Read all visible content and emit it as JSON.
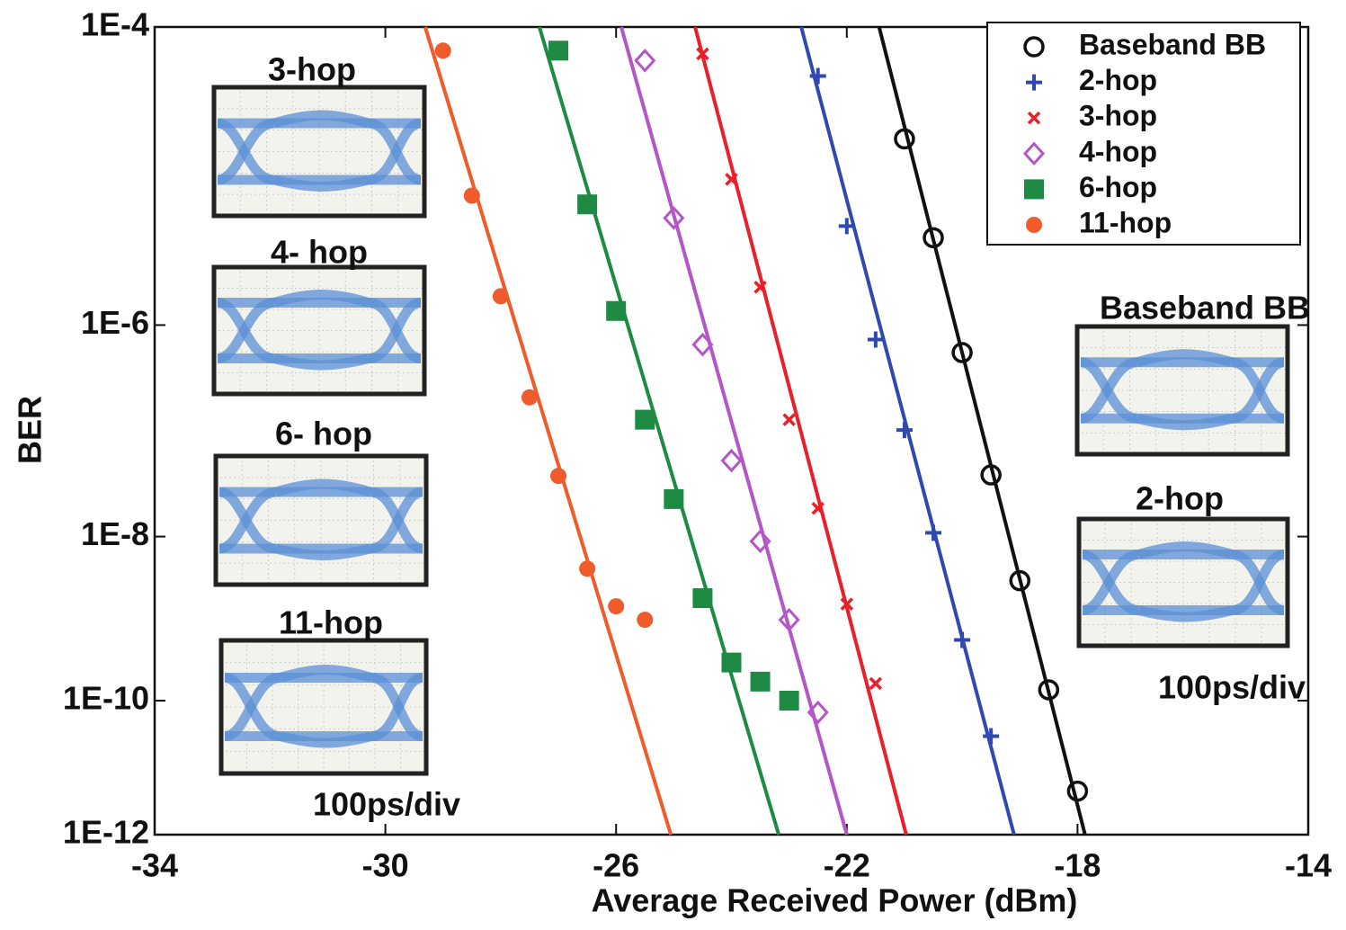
{
  "chart_data": {
    "type": "scatter",
    "xlabel": "Average Received Power (dBm)",
    "ylabel": "BER",
    "xlim": [
      -34,
      -14
    ],
    "xticks": [
      -34,
      -30,
      -26,
      -22,
      -18,
      -14
    ],
    "ylim": [
      1e-12,
      0.0001
    ],
    "yscale": "log-log",
    "yticks": [
      {
        "value": 1e-12,
        "label": "1E-12"
      },
      {
        "value": 1e-10,
        "label": "1E-10"
      },
      {
        "value": 1e-08,
        "label": "1E-8"
      },
      {
        "value": 1e-06,
        "label": "1E-6"
      },
      {
        "value": 0.0001,
        "label": "1E-4"
      }
    ],
    "grid": false,
    "legend": "top-right",
    "series": [
      {
        "name": "Baseband BB",
        "color": "#111111",
        "marker": "circle-open",
        "x": [
          -21,
          -20.5,
          -20,
          -19.5,
          -19,
          -18.5,
          -18
        ],
        "values": [
          2.2e-05,
          4.7e-06,
          5.9e-07,
          4.4e-08,
          3.2e-09,
          1.4e-10,
          4.9e-12
        ],
        "fit_x": [
          -21.44,
          -17.87
        ]
      },
      {
        "name": "2-hop",
        "color": "#3049b0",
        "marker": "plus",
        "x": [
          -22.5,
          -22,
          -21.5,
          -21,
          -20.5,
          -20,
          -19.5
        ],
        "values": [
          5.3e-05,
          5.7e-06,
          7.6e-07,
          1.2e-07,
          1.1e-08,
          6.2e-10,
          3.2e-11
        ],
        "fit_x": [
          -22.79,
          -19.1
        ]
      },
      {
        "name": "3-hop",
        "color": "#e8202a",
        "marker": "cross",
        "x": [
          -24.5,
          -24,
          -23.5,
          -23,
          -22.5,
          -22,
          -21.5
        ],
        "values": [
          7.1e-05,
          1.2e-05,
          2e-06,
          1.5e-07,
          2e-08,
          1.7e-09,
          1.7e-10
        ],
        "fit_x": [
          -24.63,
          -20.97
        ]
      },
      {
        "name": "4-hop",
        "color": "#b455c8",
        "marker": "diamond",
        "x": [
          -25.5,
          -25,
          -24.5,
          -24,
          -23.5,
          -23,
          -22.5
        ],
        "values": [
          6.5e-05,
          6.5e-06,
          6.9e-07,
          6.1e-08,
          8.9e-09,
          1.1e-09,
          6.9e-11
        ],
        "fit_x": [
          -25.91,
          -22.0
        ]
      },
      {
        "name": "6-hop",
        "color": "#1e8a44",
        "marker": "square",
        "x": [
          -27,
          -26.5,
          -26,
          -25.5,
          -25,
          -24.5,
          -24,
          -23.5,
          -23
        ],
        "values": [
          7.4e-05,
          8.1e-06,
          1.3e-06,
          1.5e-07,
          2.5e-08,
          2e-09,
          3.2e-10,
          1.8e-10,
          1e-10
        ],
        "fit_x": [
          -27.33,
          -23.18
        ]
      },
      {
        "name": "11-hop",
        "color": "#ef5b2b",
        "marker": "circle",
        "x": [
          -29,
          -28.5,
          -28,
          -27.5,
          -27,
          -26.5,
          -26,
          -25.5
        ],
        "values": [
          7.4e-05,
          9.3e-06,
          1.7e-06,
          2.4e-07,
          4.3e-08,
          4.4e-09,
          1.6e-09,
          1.1e-09
        ],
        "fit_x": [
          -29.31,
          -25.05
        ]
      }
    ],
    "insets": [
      {
        "label": "3-hop"
      },
      {
        "label": "4- hop"
      },
      {
        "label": "6- hop"
      },
      {
        "label": "11-hop"
      },
      {
        "label": "Baseband BB"
      },
      {
        "label": "2-hop"
      }
    ],
    "inset_captions": [
      "100ps/div",
      "100ps/div"
    ]
  }
}
